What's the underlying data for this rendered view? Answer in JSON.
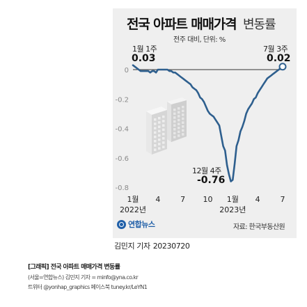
{
  "title": "전국 아파트 매매가격",
  "title_suffix": "변동률",
  "unit": "전주 대비, 단위: %",
  "annotations": {
    "start": {
      "label": "1월 1주",
      "value": "0.03"
    },
    "low": {
      "label": "12월 4주",
      "value": "-0.76"
    },
    "end": {
      "label": "7월 3주",
      "value": "0.02"
    }
  },
  "source": "자료: 한국부동산원",
  "logo": "연합뉴스",
  "byline": {
    "name": "김민지 기자",
    "date": "20230720"
  },
  "caption": {
    "title": "[그래픽] 전국 아파트 매매가격 변동률",
    "line1": "(서울=연합뉴스) 김민지 기자 = minfo@yna.co.kr",
    "line2": "트위터 @yonhap_graphics 페이스북 tuney.kr/LeYN1"
  },
  "colors": {
    "line": "#2e5f8e",
    "panel": "#efefef",
    "logo": "#1f5fa8"
  },
  "chart_data": {
    "type": "line",
    "ylim": [
      -0.8,
      0.1
    ],
    "yticks": [
      0,
      -0.2,
      -0.4,
      -0.6,
      -0.8
    ],
    "ytick_labels": [
      "0",
      "-0.2",
      "-0.4",
      "-0.6",
      "-0.8"
    ],
    "x_axis_labels": [
      {
        "week": 0,
        "label": "1월",
        "year": "2022년"
      },
      {
        "week": 13,
        "label": "4"
      },
      {
        "week": 26,
        "label": "7"
      },
      {
        "week": 39,
        "label": "10"
      },
      {
        "week": 52,
        "label": "1월",
        "year": "2023년"
      },
      {
        "week": 65,
        "label": "4"
      },
      {
        "week": 78,
        "label": "7"
      }
    ],
    "grid": false,
    "series": [
      {
        "values": [
          0.03,
          0.02,
          0.01,
          0.0,
          -0.01,
          -0.01,
          -0.01,
          -0.01,
          -0.01,
          -0.02,
          -0.01,
          -0.01,
          -0.02,
          0.0,
          0.0,
          0.0,
          0.0,
          0.0,
          0.0,
          -0.01,
          -0.01,
          -0.02,
          -0.02,
          -0.03,
          -0.04,
          -0.05,
          -0.06,
          -0.07,
          -0.08,
          -0.09,
          -0.1,
          -0.12,
          -0.13,
          -0.14,
          -0.16,
          -0.19,
          -0.2,
          -0.22,
          -0.25,
          -0.28,
          -0.3,
          -0.31,
          -0.32,
          -0.34,
          -0.36,
          -0.38,
          -0.45,
          -0.52,
          -0.55,
          -0.65,
          -0.71,
          -0.76,
          -0.75,
          -0.64,
          -0.52,
          -0.48,
          -0.42,
          -0.39,
          -0.35,
          -0.3,
          -0.27,
          -0.25,
          -0.23,
          -0.2,
          -0.19,
          -0.16,
          -0.14,
          -0.12,
          -0.1,
          -0.08,
          -0.06,
          -0.05,
          -0.04,
          -0.03,
          -0.02,
          -0.01,
          0.0,
          0.01,
          0.02
        ]
      }
    ]
  }
}
